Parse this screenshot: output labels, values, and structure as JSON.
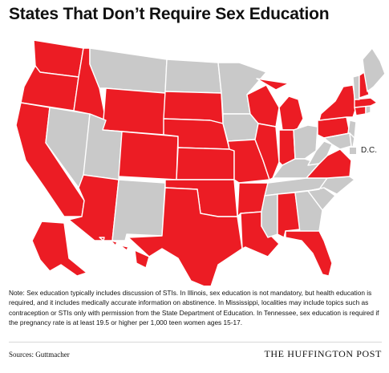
{
  "title": "States That Don’t Require Sex Education",
  "colors": {
    "no_requirement": "#ec1c24",
    "requirement": "#c9c9c9",
    "background": "#ffffff"
  },
  "legend": {
    "dc_label": "D.C."
  },
  "states_no_requirement": [
    "WA",
    "OR",
    "CA",
    "ID",
    "WY",
    "CO",
    "AZ",
    "NE",
    "SD",
    "KS",
    "OK",
    "TX",
    "MO",
    "AR",
    "LA",
    "WI",
    "MI",
    "IL",
    "IN",
    "AL",
    "FL",
    "VA",
    "PA",
    "NY",
    "NH",
    "MA",
    "CT",
    "AK",
    "HI"
  ],
  "states_requirement": [
    "MT",
    "ND",
    "NV",
    "UT",
    "NM",
    "MN",
    "IA",
    "MS",
    "TN",
    "KY",
    "OH",
    "WV",
    "NC",
    "SC",
    "GA",
    "ME",
    "VT",
    "NJ",
    "DE",
    "MD",
    "RI",
    "DC"
  ],
  "note": "Note: Sex education typically includes discussion of STIs. In Illinois, sex education is not mandatory, but health education is required, and it includes medically accurate information on abstinence. In Mississippi, localities may include topics such as contraception or STIs only with permission from the State Department of Education. In Tennessee, sex education is required if the pregnancy rate is at least 19.5 or higher per 1,000 teen women ages 15-17.",
  "source": "Sources: Guttmacher",
  "brand": "THE HUFFINGTON POST"
}
